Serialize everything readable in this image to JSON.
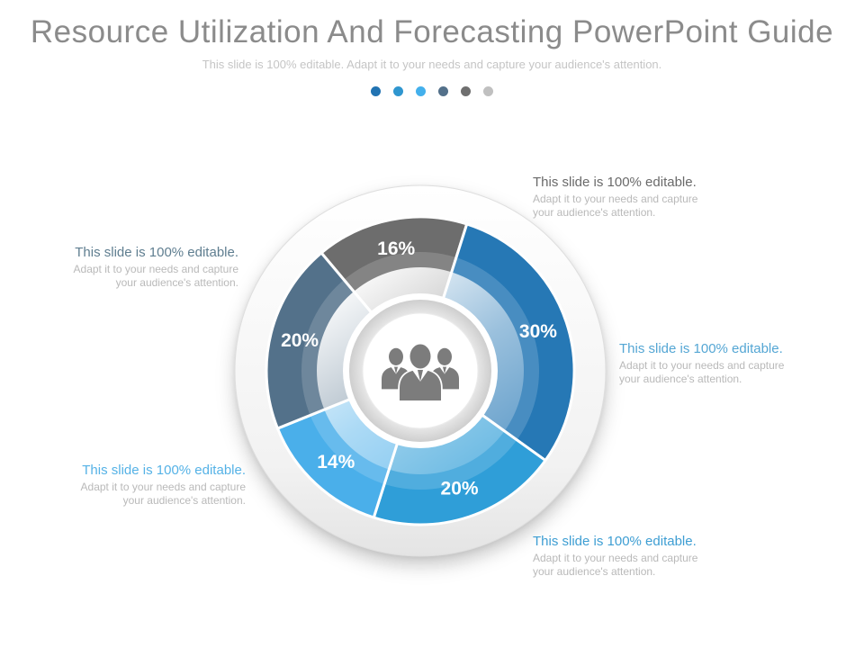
{
  "title": "Resource Utilization And Forecasting PowerPoint Guide",
  "subtitle": "This slide is 100% editable. Adapt it to your needs and capture your audience's attention.",
  "dots": [
    "#2173b2",
    "#2f96cf",
    "#43b0ec",
    "#53708a",
    "#6f6f6f",
    "#c0c0c0"
  ],
  "chart_data": {
    "type": "pie",
    "variant": "donut",
    "start_angle_deg": -40,
    "clockwise": true,
    "inner_radius": 78,
    "outer_radius": 171,
    "label_radius": 138,
    "label_color": "#ffffff",
    "center_icon": "people-group",
    "segments": [
      {
        "label": "16%",
        "value": 16,
        "color": "#6d6d6d"
      },
      {
        "label": "30%",
        "value": 30,
        "color": "#2678b5"
      },
      {
        "label": "20%",
        "value": 20,
        "color": "#2f9ed8"
      },
      {
        "label": "14%",
        "value": 14,
        "color": "#4aafea"
      },
      {
        "label": "20%",
        "value": 20,
        "color": "#53718a"
      }
    ]
  },
  "annotations": [
    {
      "heading": "This slide is 100% editable.",
      "color": "#6a6a6a",
      "sub_lines": [
        "Adapt it to your needs and capture",
        "your audience's attention."
      ]
    },
    {
      "heading": "This slide is 100% editable.",
      "color": "#5f7e90",
      "sub_lines": [
        "Adapt it to your needs and capture",
        "your audience's attention."
      ]
    },
    {
      "heading": "This slide is 100% editable.",
      "color": "#54a6d4",
      "sub_lines": [
        "Adapt it to your needs and capture",
        "your audience's attention."
      ]
    },
    {
      "heading": "This slide is 100% editable.",
      "color": "#55b2e6",
      "sub_lines": [
        "Adapt it to your needs and capture",
        "your audience's attention."
      ]
    },
    {
      "heading": "This slide is 100% editable.",
      "color": "#3e9ed3",
      "sub_lines": [
        "Adapt it to your needs and capture",
        "your audience's attention."
      ]
    }
  ]
}
